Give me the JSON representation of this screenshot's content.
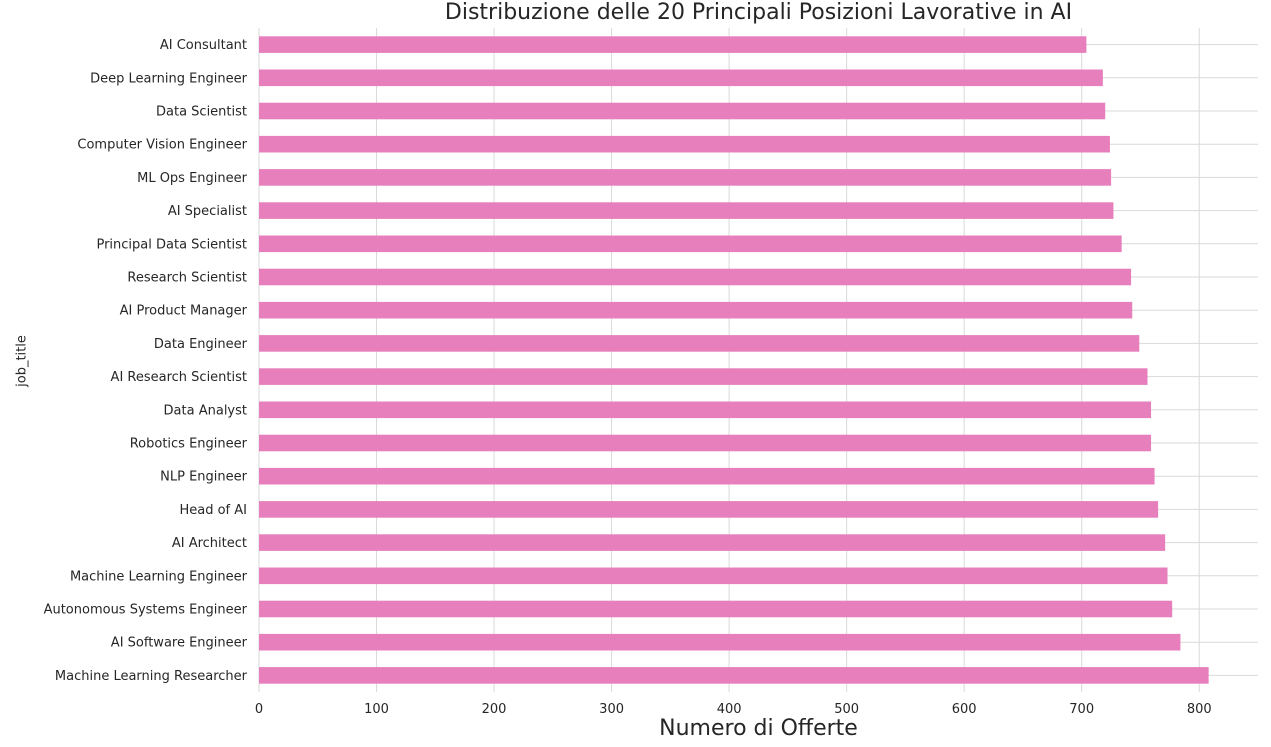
{
  "chart_data": {
    "type": "bar",
    "orientation": "horizontal",
    "title": "Distribuzione delle 20 Principali Posizioni Lavorative in AI",
    "xlabel": "Numero di Offerte",
    "ylabel": "job_title",
    "xlim": [
      0,
      850
    ],
    "xticks": [
      0,
      100,
      200,
      300,
      400,
      500,
      600,
      700,
      800
    ],
    "grid": true,
    "bar_color": "#e77fbd",
    "categories": [
      "AI Consultant",
      "Deep Learning Engineer",
      "Data Scientist",
      "Computer Vision Engineer",
      "ML Ops Engineer",
      "AI Specialist",
      "Principal Data Scientist",
      "Research Scientist",
      "AI Product Manager",
      "Data Engineer",
      "AI Research Scientist",
      "Data Analyst",
      "Robotics Engineer",
      "NLP Engineer",
      "Head of AI",
      "AI Architect",
      "Machine Learning Engineer",
      "Autonomous Systems Engineer",
      "AI Software Engineer",
      "Machine Learning Researcher"
    ],
    "values": [
      704,
      718,
      720,
      724,
      725,
      727,
      734,
      742,
      743,
      749,
      756,
      759,
      759,
      762,
      765,
      771,
      773,
      777,
      784,
      808
    ]
  }
}
